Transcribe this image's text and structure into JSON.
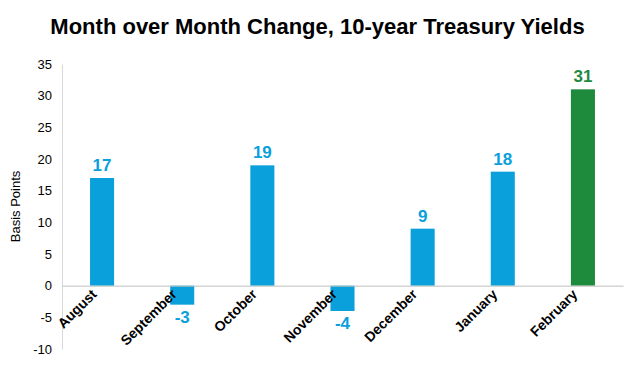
{
  "chart_data": {
    "type": "bar",
    "title": "Month over Month Change, 10-year Treasury Yields",
    "y_label": "Basis Points",
    "categories": [
      "August",
      "September",
      "October",
      "November",
      "December",
      "January",
      "February"
    ],
    "values": [
      17,
      -3,
      19,
      -4,
      9,
      18,
      31
    ],
    "colors": [
      "#0aa0dc",
      "#0aa0dc",
      "#0aa0dc",
      "#0aa0dc",
      "#0aa0dc",
      "#0aa0dc",
      "#1e8a3c"
    ],
    "ylim": [
      -10,
      35
    ],
    "yticks": [
      -10,
      -5,
      0,
      5,
      10,
      15,
      20,
      25,
      30,
      35
    ],
    "grid": false,
    "data_labels": true
  }
}
